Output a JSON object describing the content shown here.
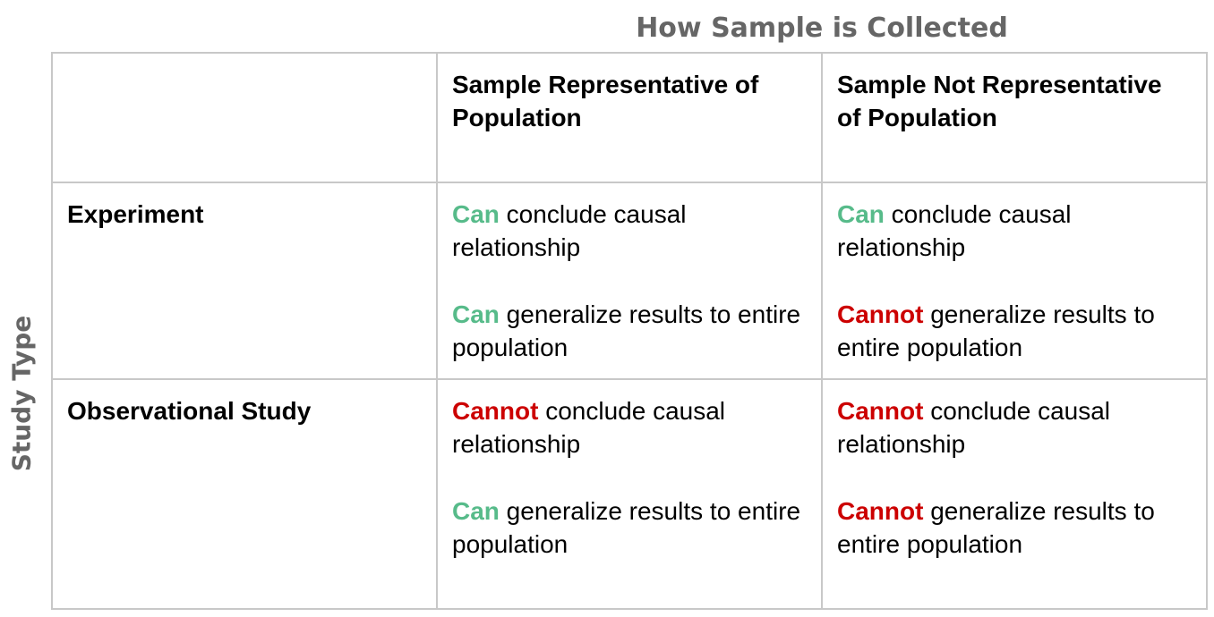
{
  "column_header": "How Sample is Collected",
  "row_header": "Study Type",
  "colors": {
    "header_gray": "#666666",
    "positive_green": "#57bb8a",
    "negative_red": "#cc0000",
    "grid_border": "#c8c8c8"
  },
  "columns": [
    "",
    "Sample Representative of Population",
    "Sample Not Representative of Population"
  ],
  "rows": [
    {
      "label": "Experiment",
      "cells": [
        {
          "causal": {
            "keyword": "Can",
            "rest": " conclude causal relationship"
          },
          "general": {
            "keyword": "Can",
            "rest": " generalize results to entire population"
          }
        },
        {
          "causal": {
            "keyword": "Can",
            "rest": " conclude causal relationship"
          },
          "general": {
            "keyword": "Cannot",
            "rest": " generalize results to entire population"
          }
        }
      ]
    },
    {
      "label": "Observational Study",
      "cells": [
        {
          "causal": {
            "keyword": "Cannot",
            "rest": " conclude causal relationship"
          },
          "general": {
            "keyword": "Can",
            "rest": " generalize results to entire population"
          }
        },
        {
          "causal": {
            "keyword": "Cannot",
            "rest": " conclude causal relationship"
          },
          "general": {
            "keyword": "Cannot",
            "rest": " generalize results to entire population"
          }
        }
      ]
    }
  ]
}
